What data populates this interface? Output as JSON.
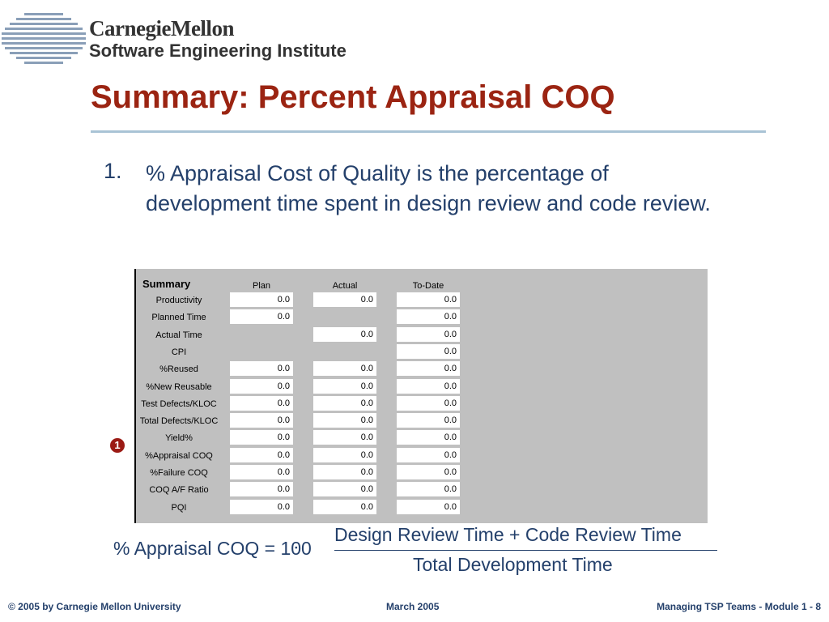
{
  "logo": {
    "line1": "CarnegieMellon",
    "line2": "Software Engineering Institute"
  },
  "title": "Summary:  Percent Appraisal COQ",
  "bullet": {
    "number": "1.",
    "text": "% Appraisal Cost of Quality is the percentage of development time spent in design review and code review."
  },
  "table": {
    "title": "Summary",
    "columns": [
      "Plan",
      "Actual",
      "To-Date"
    ],
    "rows": [
      {
        "label": "Productivity",
        "plan": "0.0",
        "actual": "0.0",
        "todate": "0.0"
      },
      {
        "label": "Planned Time",
        "plan": "0.0",
        "actual": null,
        "todate": "0.0"
      },
      {
        "label": "Actual Time",
        "plan": null,
        "actual": "0.0",
        "todate": "0.0"
      },
      {
        "label": "CPI",
        "plan": null,
        "actual": null,
        "todate": "0.0"
      },
      {
        "label": "%Reused",
        "plan": "0.0",
        "actual": "0.0",
        "todate": "0.0"
      },
      {
        "label": "%New Reusable",
        "plan": "0.0",
        "actual": "0.0",
        "todate": "0.0"
      },
      {
        "label": "Test Defects/KLOC",
        "plan": "0.0",
        "actual": "0.0",
        "todate": "0.0"
      },
      {
        "label": "Total Defects/KLOC",
        "plan": "0.0",
        "actual": "0.0",
        "todate": "0.0"
      },
      {
        "label": "Yield%",
        "plan": "0.0",
        "actual": "0.0",
        "todate": "0.0"
      },
      {
        "label": "%Appraisal COQ",
        "plan": "0.0",
        "actual": "0.0",
        "todate": "0.0"
      },
      {
        "label": "%Failure COQ",
        "plan": "0.0",
        "actual": "0.0",
        "todate": "0.0"
      },
      {
        "label": "COQ A/F Ratio",
        "plan": "0.0",
        "actual": "0.0",
        "todate": "0.0"
      },
      {
        "label": "PQI",
        "plan": "0.0",
        "actual": "0.0",
        "todate": "0.0"
      }
    ]
  },
  "badge": "1",
  "formula": {
    "lhs": "% Appraisal COQ = 100",
    "multiply": "·",
    "numerator": "Design Review Time + Code Review Time",
    "denominator": "Total Development Time"
  },
  "footer": {
    "copyright": "© 2005 by Carnegie Mellon University",
    "date": "March 2005",
    "module": "Managing TSP Teams - Module 1 - 8"
  }
}
